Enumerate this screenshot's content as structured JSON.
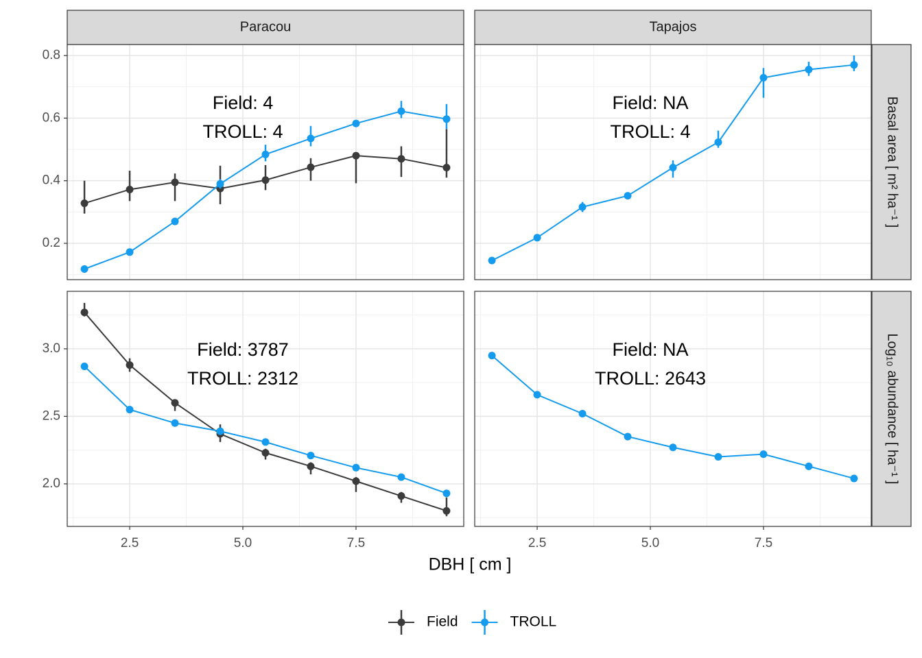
{
  "facets": {
    "columns": [
      "Paracou",
      "Tapajos"
    ],
    "rows": [
      "Basal area [ m² ha⁻¹ ]",
      "Log₁₀ abundance [ ha⁻¹ ]"
    ]
  },
  "x_label": "DBH [ cm ]",
  "legend_position": "bottom",
  "chart_data": [
    {
      "type": "line",
      "grid": true,
      "annotation": [
        "Field: 4",
        "TROLL: 4"
      ],
      "x": [
        1.5,
        2.5,
        3.5,
        4.5,
        5.5,
        6.5,
        7.5,
        8.5,
        9.5
      ],
      "xlim": [
        1.12,
        9.88
      ],
      "xticks": [
        2.5,
        {
          "value": 5,
          "label": "5.0"
        },
        7.5
      ],
      "ylim": [
        0.084,
        0.835
      ],
      "yticks": [
        0.2,
        0.4,
        0.6,
        0.8
      ],
      "series": [
        {
          "name": "Field",
          "color": "#3b3b3b",
          "values": [
            0.328,
            0.372,
            0.395,
            0.375,
            0.402,
            0.443,
            0.48,
            0.47,
            0.442
          ],
          "low": [
            0.295,
            0.335,
            0.335,
            0.325,
            0.37,
            0.4,
            0.392,
            0.412,
            0.41
          ],
          "high": [
            0.4,
            0.432,
            0.423,
            0.448,
            0.45,
            0.472,
            0.485,
            0.51,
            0.565
          ]
        },
        {
          "name": "TROLL",
          "color": "#149bed",
          "values": [
            0.118,
            0.172,
            0.27,
            0.39,
            0.484,
            0.535,
            0.583,
            0.622,
            0.597
          ],
          "low": [
            0.114,
            0.166,
            0.262,
            0.375,
            0.462,
            0.51,
            0.575,
            0.6,
            0.565
          ],
          "high": [
            0.122,
            0.178,
            0.28,
            0.405,
            0.515,
            0.575,
            0.59,
            0.655,
            0.645
          ]
        }
      ]
    },
    {
      "type": "line",
      "grid": true,
      "annotation": [
        "Field: NA",
        "TROLL: 4"
      ],
      "x": [
        1.5,
        2.5,
        3.5,
        4.5,
        5.5,
        6.5,
        7.5,
        8.5,
        9.5
      ],
      "xlim": [
        1.12,
        9.88
      ],
      "xticks": [
        2.5,
        {
          "value": 5,
          "label": "5.0"
        },
        7.5
      ],
      "ylim": [
        0.084,
        0.835
      ],
      "yticks": [
        0.2,
        0.4,
        0.6,
        0.8
      ],
      "series": [
        {
          "name": "TROLL",
          "color": "#149bed",
          "values": [
            0.145,
            0.218,
            0.316,
            0.352,
            0.442,
            0.523,
            0.729,
            0.755,
            0.77
          ],
          "low": [
            0.14,
            0.212,
            0.3,
            0.345,
            0.41,
            0.505,
            0.665,
            0.735,
            0.75
          ],
          "high": [
            0.15,
            0.224,
            0.332,
            0.36,
            0.465,
            0.56,
            0.76,
            0.78,
            0.8
          ]
        }
      ]
    },
    {
      "type": "line",
      "grid": true,
      "annotation": [
        "Field: 3787",
        "TROLL: 2312"
      ],
      "x": [
        1.5,
        2.5,
        3.5,
        4.5,
        5.5,
        6.5,
        7.5,
        8.5,
        9.5
      ],
      "xlim": [
        1.12,
        9.88
      ],
      "xticks": [
        2.5,
        {
          "value": 5,
          "label": "5.0"
        },
        7.5
      ],
      "ylim": [
        1.685,
        3.426
      ],
      "yticks": [
        {
          "value": 2,
          "label": "2.0"
        },
        2.5,
        {
          "value": 3,
          "label": "3.0"
        }
      ],
      "series": [
        {
          "name": "Field",
          "color": "#3b3b3b",
          "values": [
            3.27,
            2.88,
            2.6,
            2.37,
            2.23,
            2.13,
            2.02,
            1.91,
            1.8
          ],
          "low": [
            3.24,
            2.83,
            2.54,
            2.31,
            2.18,
            2.07,
            1.94,
            1.86,
            1.76
          ],
          "high": [
            3.34,
            2.93,
            2.62,
            2.44,
            2.26,
            2.16,
            2.05,
            1.94,
            1.9
          ]
        },
        {
          "name": "TROLL",
          "color": "#149bed",
          "values": [
            2.87,
            2.55,
            2.45,
            2.39,
            2.31,
            2.21,
            2.12,
            2.05,
            1.93
          ],
          "low": [
            2.86,
            2.54,
            2.44,
            2.38,
            2.3,
            2.2,
            2.11,
            2.04,
            1.92
          ],
          "high": [
            2.88,
            2.56,
            2.46,
            2.4,
            2.32,
            2.22,
            2.13,
            2.06,
            1.94
          ]
        }
      ]
    },
    {
      "type": "line",
      "grid": true,
      "annotation": [
        "Field: NA",
        "TROLL: 2643"
      ],
      "x": [
        1.5,
        2.5,
        3.5,
        4.5,
        5.5,
        6.5,
        7.5,
        8.5,
        9.5
      ],
      "xlim": [
        1.12,
        9.88
      ],
      "xticks": [
        2.5,
        {
          "value": 5,
          "label": "5.0"
        },
        7.5
      ],
      "ylim": [
        1.685,
        3.426
      ],
      "yticks": [
        {
          "value": 2,
          "label": "2.0"
        },
        2.5,
        {
          "value": 3,
          "label": "3.0"
        }
      ],
      "series": [
        {
          "name": "TROLL",
          "color": "#149bed",
          "values": [
            2.95,
            2.66,
            2.52,
            2.35,
            2.27,
            2.2,
            2.22,
            2.13,
            2.04
          ],
          "low": [
            2.94,
            2.65,
            2.51,
            2.34,
            2.26,
            2.19,
            2.21,
            2.12,
            2.03
          ],
          "high": [
            2.96,
            2.67,
            2.53,
            2.36,
            2.28,
            2.21,
            2.23,
            2.14,
            2.05
          ]
        }
      ]
    }
  ]
}
